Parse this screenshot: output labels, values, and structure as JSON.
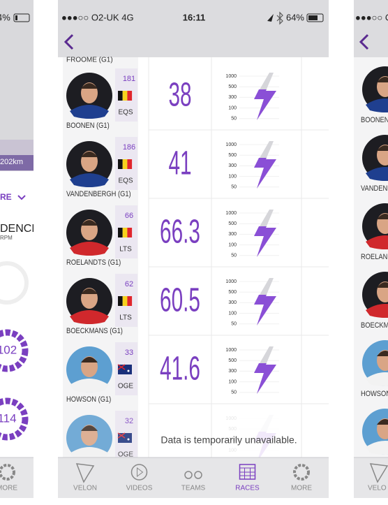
{
  "left_panel": {
    "battery": "4%",
    "distance": "202km",
    "section_toggle": "RE",
    "metric_title": "DENCE",
    "metric_unit": "RPM",
    "gauges": [
      "102",
      "114"
    ],
    "tab": "MORE"
  },
  "main_panel": {
    "status_bar": {
      "carrier": "●●●○○ O2-UK  4G",
      "time": "16:11",
      "battery": "64%"
    },
    "partial_rider_name": "FROOME (G1)",
    "riders": [
      {
        "name": "BOONEN (G1)",
        "number": 181,
        "team": "EQS",
        "speed": 38
      },
      {
        "name": "VANDENBERGH (G1)",
        "number": 186,
        "team": "EQS",
        "speed": 41
      },
      {
        "name": "ROELANDTS (G1)",
        "number": 66,
        "team": "LTS",
        "speed": 66.3
      },
      {
        "name": "BOECKMANS (G1)",
        "number": 62,
        "team": "LTS",
        "speed": 60.5
      },
      {
        "name": "HOWSON (G1)",
        "number": 33,
        "team": "OGE",
        "speed": 41.6
      },
      {
        "number": 32,
        "team": "OGE"
      }
    ],
    "power_scale": [
      "1000",
      "500",
      "300",
      "100",
      "50"
    ],
    "unavailable_message": "Data is temporarily unavailable.",
    "tabs": [
      "VELON",
      "VIDEOS",
      "TEAMS",
      "RACES",
      "MORE"
    ]
  },
  "right_panel": {
    "carrier": "●●●○○ O",
    "names": [
      "BOONEN (",
      "VANDENB",
      "ROELANDT",
      "BOECKMAN",
      "HOWSON"
    ],
    "tab": "VELO"
  }
}
